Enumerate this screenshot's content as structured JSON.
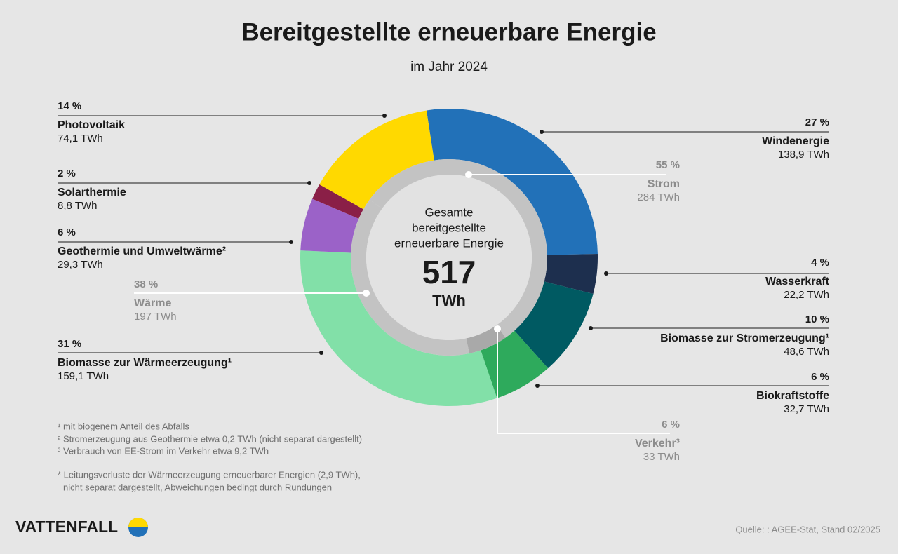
{
  "chart_data": {
    "type": "donut",
    "title": "Bereitgestellte erneuerbare Energie",
    "subtitle": "im Jahr 2024",
    "center_label": [
      "Gesamte",
      "bereitgestellte",
      "erneuerbare Energie"
    ],
    "total": 517,
    "total_unit": "TWh",
    "rings": [
      {
        "categories": [
          "Windenergie",
          "Wasserkraft",
          "Biomasse zur Stromerzeugung¹",
          "Biokraftstoffe",
          "Biomasse zur Wärmeerzeugung¹",
          "Geothermie und Umweltwärme²",
          "Solarthermie",
          "Photovoltaik"
        ],
        "values": [
          138.9,
          22.2,
          48.6,
          32.7,
          159.1,
          29.3,
          8.8,
          74.1
        ],
        "value_labels": [
          "138,9 TWh",
          "22,2 TWh",
          "48,6 TWh",
          "32,7 TWh",
          "159,1 TWh",
          "29,3 TWh",
          "8,8 TWh",
          "74,1 TWh"
        ],
        "share_labels": [
          "27 %",
          "4 %",
          "10 %",
          "6 %",
          "31 %",
          "6 %",
          "2 %",
          "14 %"
        ],
        "colors": [
          "#2271b8",
          "#1d2f4e",
          "#005a62",
          "#2eaa5c",
          "#82e0a8",
          "#9b62c8",
          "#8a1f47",
          "#ffd900"
        ]
      },
      {
        "categories": [
          "Strom",
          "Verkehr³",
          "Wärme"
        ],
        "values": [
          284,
          33,
          197
        ],
        "value_labels": [
          "284 TWh",
          "33 TWh",
          "197 TWh"
        ],
        "share_labels": [
          "55 %",
          "6 %",
          "38 %"
        ],
        "colors": [
          "#c3c3c3",
          "#a9a9a9",
          "#c3c3c3"
        ]
      }
    ],
    "footnotes": [
      "¹ mit biogenem Anteil des Abfalls",
      "² Stromerzeugung aus Geothermie etwa 0,2 TWh (nicht separat dargestellt)",
      "³ Verbrauch von EE-Strom im Verkehr etwa 9,2 TWh",
      "* Leitungsverluste der Wärmeerzeugung erneuerbarer Energien (2,9 TWh),",
      "nicht separat dargestellt, Abweichungen bedingt durch Rundungen"
    ],
    "logo": "VATTENFALL",
    "source": "Quelle: : AGEE-Stat, Stand 02/2025"
  }
}
